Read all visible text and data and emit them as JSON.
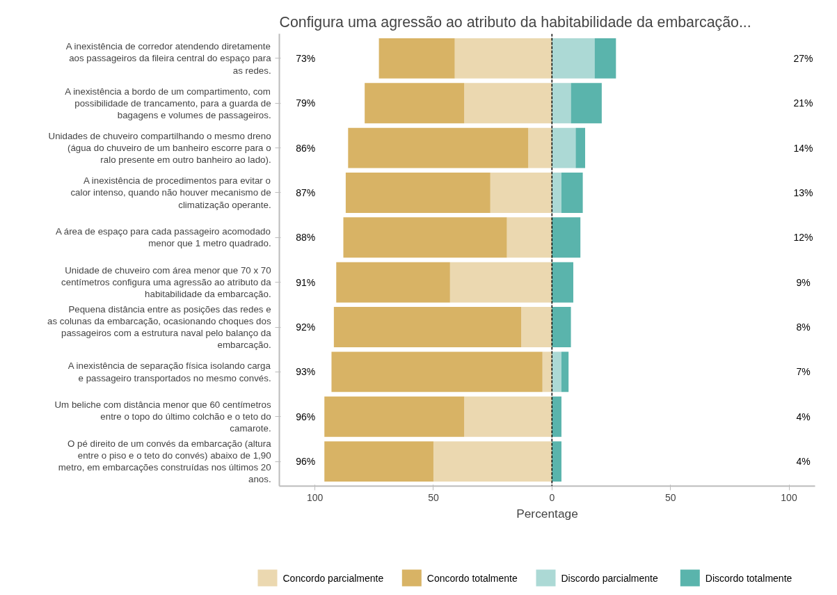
{
  "chart_data": {
    "type": "bar",
    "orientation": "horizontal",
    "stacked": true,
    "title": "Configura uma agressão ao atributo da habitabilidade da embarcação...",
    "xlabel": "Percentage",
    "categories": [
      "A inexistência de corredor atendendo diretamente aos passageiros da fileira central do espaço para as redes.",
      "A inexistência a bordo de um compartimento, com possibilidade de trancamento, para a guarda de bagagens e volumes de passageiros.",
      "Unidades de chuveiro compartilhando o mesmo dreno (água do chuveiro de um banheiro escorre para o ralo presente em outro banheiro ao lado).",
      "A inexistência de procedimentos para evitar o calor intenso, quando não houver mecanismo de climatização operante.",
      "A área de espaço para cada passageiro acomodado menor que 1 metro quadrado.",
      "Unidade de chuveiro com área menor que 70 x 70 centímetros configura uma agressão ao atributo da habitabilidade da embarcação.",
      "Pequena distância entre as posições das redes e as colunas da embarcação, ocasionando choques dos passageiros com a estrutura naval pelo balanço da embarcação.",
      "A inexistência de separação física isolando carga e passageiro transportados no mesmo convés.",
      "Um beliche com distância menor que 60 centímetros entre o topo do último colchão e o teto do camarote.",
      "O pé direito de um convés da embarcação (altura entre o piso e o teto do convés) abaixo de 1,90 metro, em embarcações construídas nos últimos 20 anos."
    ],
    "series": [
      {
        "name": "Concordo parcialmente",
        "color": "#ebd8b0",
        "values": [
          -41,
          -37,
          -10,
          -26,
          -19,
          -43,
          -13,
          -4,
          -37,
          -50
        ]
      },
      {
        "name": "Concordo totalmente",
        "color": "#d8b365",
        "values": [
          -32,
          -42,
          -76,
          -61,
          -69,
          -48,
          -79,
          -89,
          -59,
          -46
        ]
      },
      {
        "name": "Discordo parcialmente",
        "color": "#acd9d5",
        "values": [
          18,
          8,
          10,
          4,
          0,
          0,
          0,
          4,
          0,
          0
        ]
      },
      {
        "name": "Discordo totalmente",
        "color": "#5ab4ac",
        "values": [
          9,
          13,
          4,
          9,
          12,
          9,
          8,
          3,
          4,
          4
        ]
      }
    ],
    "xlim": [
      -115,
      111
    ],
    "xticks": [
      {
        "value": -100,
        "label": "100"
      },
      {
        "value": -50,
        "label": "50"
      },
      0,
      50,
      100
    ],
    "ref_lines": [
      {
        "axis": "x",
        "value": 0,
        "color": "#000000",
        "line_style": "dashed"
      }
    ],
    "annotations": [
      "73%",
      "27%",
      "79%",
      "21%",
      "86%",
      "14%",
      "87%",
      "13%",
      "88%",
      "12%",
      "91%",
      "9%",
      "92%",
      "8%",
      "93%",
      "7%",
      "96%",
      "4%",
      "96%",
      "4%"
    ],
    "grid": false,
    "legend": "bottom"
  }
}
